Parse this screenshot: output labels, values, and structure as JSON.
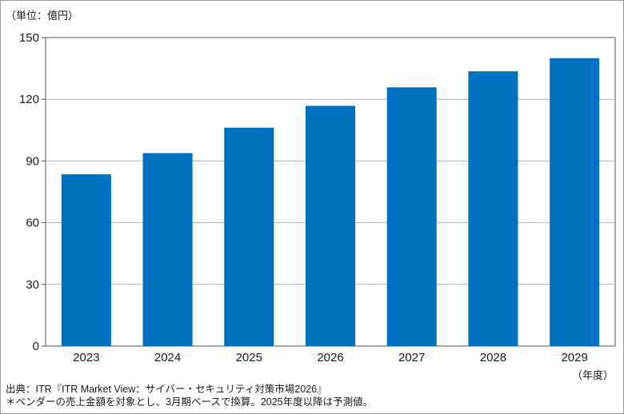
{
  "chart_data": {
    "type": "bar",
    "y_unit_label": "（単位：億円）",
    "x_unit_label": "（年度）",
    "categories": [
      "2023",
      "2024",
      "2025",
      "2026",
      "2027",
      "2028",
      "2029"
    ],
    "values": [
      83.5,
      93.8,
      106.2,
      116.8,
      125.8,
      133.6,
      140.0
    ],
    "ylim": [
      0,
      150
    ],
    "yticks": [
      0,
      30,
      60,
      90,
      120,
      150
    ],
    "bar_color": "#0070c0",
    "grid": true,
    "title": "",
    "xlabel": "",
    "ylabel": ""
  },
  "footer": {
    "source": "出典：ITR『ITR Market View：サイバー・セキュリティ対策市場2026』",
    "note": "＊ベンダーの売上金額を対象とし、3月期ベースで換算。2025年度以降は予測値。"
  }
}
